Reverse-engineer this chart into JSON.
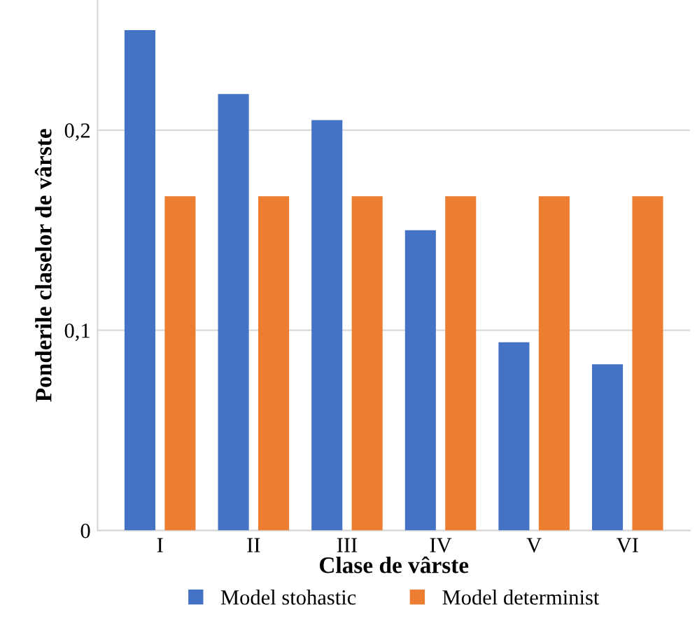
{
  "chart_data": {
    "type": "bar",
    "xlabel": "Clase de vârste",
    "ylabel": "Ponderile claselor de vârste",
    "categories": [
      "I",
      "II",
      "III",
      "IV",
      "V",
      "VI"
    ],
    "series": [
      {
        "name": "Model stohastic",
        "color": "#4472c4",
        "values": [
          0.25,
          0.218,
          0.205,
          0.15,
          0.094,
          0.083
        ]
      },
      {
        "name": "Model determinist",
        "color": "#ed7d31",
        "values": [
          0.167,
          0.167,
          0.167,
          0.167,
          0.167,
          0.167
        ]
      }
    ],
    "ylim": [
      0,
      0.265
    ],
    "yticks": [
      {
        "value": 0,
        "label": "0"
      },
      {
        "value": 0.1,
        "label": "0,1"
      },
      {
        "value": 0.2,
        "label": "0,2"
      }
    ],
    "grid": "y",
    "legend": "bottom"
  }
}
